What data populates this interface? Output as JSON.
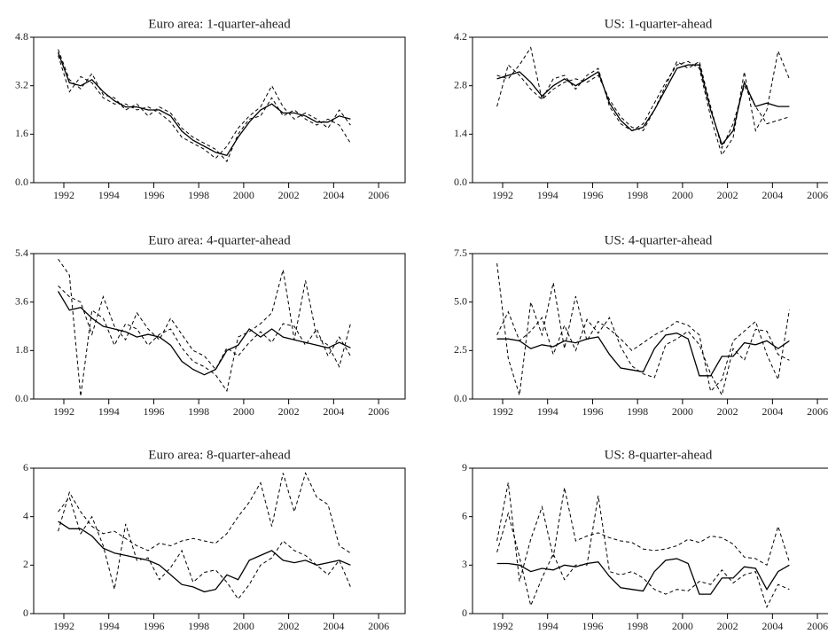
{
  "chart_data": [
    {
      "type": "line",
      "title": "Euro area: 1-quarter-ahead",
      "x": [
        1991.75,
        1992.25,
        1992.75,
        1993.25,
        1993.75,
        1994.25,
        1994.75,
        1995.25,
        1995.75,
        1996.25,
        1996.75,
        1997.25,
        1997.75,
        1998.25,
        1998.75,
        1999.25,
        1999.75,
        2000.25,
        2000.75,
        2001.25,
        2001.75,
        2002.25,
        2002.75,
        2003.25,
        2003.75,
        2004.25,
        2004.75
      ],
      "xlim": [
        1990.66,
        2007.18
      ],
      "xticks": [
        1992,
        1994,
        1996,
        1998,
        2000,
        2002,
        2004,
        2006
      ],
      "ylim": [
        0,
        4.8
      ],
      "yticks": [
        {
          "value": 0,
          "label": "0.0"
        },
        1.6,
        3.2,
        4.8
      ],
      "series": [
        {
          "color": "#000000",
          "dashed": false,
          "values": [
            4.3,
            3.3,
            3.2,
            3.4,
            3.0,
            2.7,
            2.5,
            2.5,
            2.4,
            2.4,
            2.2,
            1.7,
            1.4,
            1.2,
            1.0,
            0.9,
            1.5,
            2.0,
            2.4,
            2.6,
            2.3,
            2.3,
            2.2,
            2.0,
            2.0,
            2.2,
            2.1
          ]
        },
        {
          "color": "#000000",
          "dashed": true,
          "values": [
            4.2,
            3.0,
            3.5,
            3.3,
            2.8,
            2.6,
            2.6,
            2.4,
            2.5,
            2.3,
            2.0,
            1.5,
            1.3,
            1.1,
            0.8,
            1.2,
            1.8,
            2.2,
            2.5,
            3.2,
            2.5,
            2.1,
            2.3,
            2.1,
            1.8,
            2.4,
            1.9
          ]
        },
        {
          "color": "#000000",
          "dashed": true,
          "values": [
            4.4,
            3.4,
            3.1,
            3.6,
            2.9,
            2.8,
            2.4,
            2.6,
            2.2,
            2.5,
            2.3,
            1.8,
            1.5,
            1.3,
            1.1,
            0.7,
            1.6,
            2.1,
            2.2,
            2.8,
            2.2,
            2.4,
            2.1,
            1.9,
            2.1,
            1.9,
            1.3
          ]
        }
      ]
    },
    {
      "type": "line",
      "title": "US: 1-quarter-ahead",
      "x": [
        1991.75,
        1992.25,
        1992.75,
        1993.25,
        1993.75,
        1994.25,
        1994.75,
        1995.25,
        1995.75,
        1996.25,
        1996.75,
        1997.25,
        1997.75,
        1998.25,
        1998.75,
        1999.25,
        1999.75,
        2000.25,
        2000.75,
        2001.25,
        2001.75,
        2002.25,
        2002.75,
        2003.25,
        2003.75,
        2004.25,
        2004.75
      ],
      "xlim": [
        1990.66,
        2007.18
      ],
      "xticks": [
        1992,
        1994,
        1996,
        1998,
        2000,
        2002,
        2004,
        2006
      ],
      "ylim": [
        0,
        4.2
      ],
      "yticks": [
        {
          "value": 0,
          "label": "0.0"
        },
        1.4,
        2.8,
        4.2
      ],
      "series": [
        {
          "color": "#000000",
          "dashed": false,
          "values": [
            3.0,
            3.1,
            3.2,
            2.9,
            2.5,
            2.8,
            3.0,
            2.8,
            3.0,
            3.2,
            2.3,
            1.8,
            1.5,
            1.6,
            2.1,
            2.7,
            3.3,
            3.4,
            3.4,
            2.1,
            1.1,
            1.5,
            2.9,
            2.2,
            2.3,
            2.2,
            2.2
          ]
        },
        {
          "color": "#000000",
          "dashed": true,
          "values": [
            2.2,
            3.4,
            3.1,
            2.7,
            2.4,
            3.0,
            3.1,
            2.7,
            3.1,
            3.3,
            2.2,
            1.7,
            1.5,
            1.7,
            2.3,
            2.9,
            3.4,
            3.5,
            3.3,
            1.9,
            0.8,
            1.3,
            3.2,
            1.5,
            2.1,
            3.8,
            3.0
          ]
        },
        {
          "color": "#000000",
          "dashed": true,
          "values": [
            3.1,
            3.0,
            3.4,
            3.9,
            2.4,
            2.7,
            2.9,
            3.0,
            2.9,
            3.1,
            2.4,
            1.9,
            1.6,
            1.5,
            2.1,
            2.8,
            3.5,
            3.3,
            3.5,
            2.2,
            1.0,
            1.7,
            2.8,
            2.2,
            1.7,
            1.8,
            1.9
          ]
        }
      ]
    },
    {
      "type": "line",
      "title": "Euro area: 4-quarter-ahead",
      "x": [
        1991.75,
        1992.25,
        1992.75,
        1993.25,
        1993.75,
        1994.25,
        1994.75,
        1995.25,
        1995.75,
        1996.25,
        1996.75,
        1997.25,
        1997.75,
        1998.25,
        1998.75,
        1999.25,
        1999.75,
        2000.25,
        2000.75,
        2001.25,
        2001.75,
        2002.25,
        2002.75,
        2003.25,
        2003.75,
        2004.25,
        2004.75
      ],
      "xlim": [
        1990.66,
        2007.18
      ],
      "xticks": [
        1992,
        1994,
        1996,
        1998,
        2000,
        2002,
        2004,
        2006
      ],
      "ylim": [
        0,
        5.4
      ],
      "yticks": [
        {
          "value": 0,
          "label": "0.0"
        },
        1.8,
        3.6,
        5.4
      ],
      "series": [
        {
          "color": "#000000",
          "dashed": false,
          "values": [
            4.0,
            3.3,
            3.4,
            3.0,
            2.7,
            2.6,
            2.5,
            2.3,
            2.4,
            2.3,
            2.0,
            1.4,
            1.1,
            0.9,
            1.1,
            1.8,
            2.0,
            2.6,
            2.3,
            2.6,
            2.3,
            2.2,
            2.1,
            2.0,
            1.9,
            2.1,
            1.9
          ]
        },
        {
          "color": "#000000",
          "dashed": true,
          "values": [
            5.2,
            4.6,
            0.1,
            3.3,
            3.0,
            2.0,
            2.8,
            2.6,
            2.0,
            2.4,
            2.6,
            1.9,
            1.4,
            1.2,
            0.9,
            0.3,
            2.3,
            2.5,
            2.8,
            3.2,
            4.8,
            2.2,
            4.4,
            2.3,
            2.0,
            1.2,
            2.8
          ]
        },
        {
          "color": "#000000",
          "dashed": true,
          "values": [
            4.2,
            3.8,
            3.6,
            2.4,
            3.8,
            2.7,
            2.2,
            3.2,
            2.6,
            2.2,
            3.0,
            2.4,
            1.8,
            1.6,
            1.1,
            1.9,
            1.6,
            2.1,
            2.5,
            2.1,
            2.8,
            2.7,
            2.0,
            2.6,
            1.6,
            2.3,
            1.6
          ]
        }
      ]
    },
    {
      "type": "line",
      "title": "US: 4-quarter-ahead",
      "x": [
        1991.75,
        1992.25,
        1992.75,
        1993.25,
        1993.75,
        1994.25,
        1994.75,
        1995.25,
        1995.75,
        1996.25,
        1996.75,
        1997.25,
        1997.75,
        1998.25,
        1998.75,
        1999.25,
        1999.75,
        2000.25,
        2000.75,
        2001.25,
        2001.75,
        2002.25,
        2002.75,
        2003.25,
        2003.75,
        2004.25,
        2004.75
      ],
      "xlim": [
        1990.66,
        2007.18
      ],
      "xticks": [
        1992,
        1994,
        1996,
        1998,
        2000,
        2002,
        2004,
        2006
      ],
      "ylim": [
        0,
        7.5
      ],
      "yticks": [
        {
          "value": 0,
          "label": "0.0"
        },
        2.5,
        {
          "value": 5,
          "label": "5.0"
        },
        7.5
      ],
      "series": [
        {
          "color": "#000000",
          "dashed": false,
          "values": [
            3.1,
            3.1,
            3.0,
            2.6,
            2.8,
            2.7,
            3.0,
            2.9,
            3.1,
            3.2,
            2.3,
            1.6,
            1.5,
            1.4,
            2.6,
            3.3,
            3.4,
            3.1,
            1.2,
            1.2,
            2.2,
            2.2,
            2.9,
            2.8,
            3.0,
            2.6,
            3.0
          ]
        },
        {
          "color": "#000000",
          "dashed": true,
          "values": [
            7.0,
            2.1,
            0.2,
            5.0,
            3.3,
            6.0,
            2.6,
            5.3,
            3.0,
            4.0,
            3.6,
            3.1,
            2.5,
            2.9,
            3.3,
            3.6,
            4.0,
            3.8,
            3.3,
            0.4,
            1.0,
            3.0,
            3.5,
            4.0,
            2.3,
            1.0,
            4.6
          ]
        },
        {
          "color": "#000000",
          "dashed": true,
          "values": [
            3.3,
            4.5,
            3.0,
            3.5,
            4.2,
            2.3,
            3.8,
            2.5,
            4.1,
            3.4,
            4.2,
            2.7,
            1.7,
            1.3,
            1.1,
            2.8,
            3.1,
            3.5,
            2.8,
            1.3,
            0.2,
            2.6,
            2.0,
            3.6,
            3.5,
            2.3,
            2.0
          ]
        }
      ]
    },
    {
      "type": "line",
      "title": "Euro area: 8-quarter-ahead",
      "x": [
        1991.75,
        1992.25,
        1992.75,
        1993.25,
        1993.75,
        1994.25,
        1994.75,
        1995.25,
        1995.75,
        1996.25,
        1996.75,
        1997.25,
        1997.75,
        1998.25,
        1998.75,
        1999.25,
        1999.75,
        2000.25,
        2000.75,
        2001.25,
        2001.75,
        2002.25,
        2002.75,
        2003.25,
        2003.75,
        2004.25,
        2004.75
      ],
      "xlim": [
        1990.66,
        2007.18
      ],
      "xticks": [
        1992,
        1994,
        1996,
        1998,
        2000,
        2002,
        2004,
        2006
      ],
      "ylim": [
        0,
        6
      ],
      "yticks": [
        0,
        2,
        4,
        6
      ],
      "series": [
        {
          "color": "#000000",
          "dashed": false,
          "values": [
            3.8,
            3.5,
            3.5,
            3.2,
            2.7,
            2.5,
            2.4,
            2.3,
            2.2,
            2.0,
            1.6,
            1.2,
            1.1,
            0.9,
            1.0,
            1.6,
            1.4,
            2.2,
            2.4,
            2.6,
            2.2,
            2.1,
            2.2,
            2.0,
            2.1,
            2.2,
            2.0
          ]
        },
        {
          "color": "#000000",
          "dashed": true,
          "values": [
            3.4,
            5.0,
            4.2,
            3.6,
            3.3,
            3.4,
            3.1,
            2.8,
            2.6,
            2.9,
            2.8,
            3.0,
            3.1,
            3.0,
            2.9,
            3.3,
            4.0,
            4.6,
            5.4,
            3.6,
            5.8,
            4.2,
            5.8,
            4.8,
            4.5,
            2.8,
            2.5
          ]
        },
        {
          "color": "#000000",
          "dashed": true,
          "values": [
            4.2,
            4.8,
            3.3,
            4.0,
            2.8,
            1.0,
            3.7,
            2.2,
            2.3,
            1.4,
            1.9,
            2.6,
            1.3,
            1.7,
            1.8,
            1.3,
            0.6,
            1.2,
            2.0,
            2.3,
            3.0,
            2.6,
            2.4,
            2.0,
            1.6,
            2.2,
            1.1
          ]
        }
      ]
    },
    {
      "type": "line",
      "title": "US: 8-quarter-ahead",
      "x": [
        1991.75,
        1992.25,
        1992.75,
        1993.25,
        1993.75,
        1994.25,
        1994.75,
        1995.25,
        1995.75,
        1996.25,
        1996.75,
        1997.25,
        1997.75,
        1998.25,
        1998.75,
        1999.25,
        1999.75,
        2000.25,
        2000.75,
        2001.25,
        2001.75,
        2002.25,
        2002.75,
        2003.25,
        2003.75,
        2004.25,
        2004.75
      ],
      "xlim": [
        1990.66,
        2007.18
      ],
      "xticks": [
        1992,
        1994,
        1996,
        1998,
        2000,
        2002,
        2004,
        2006
      ],
      "ylim": [
        0,
        9
      ],
      "yticks": [
        0,
        3,
        6,
        9
      ],
      "series": [
        {
          "color": "#000000",
          "dashed": false,
          "values": [
            3.1,
            3.1,
            3.0,
            2.6,
            2.8,
            2.7,
            3.0,
            2.9,
            3.1,
            3.2,
            2.3,
            1.6,
            1.5,
            1.4,
            2.6,
            3.3,
            3.4,
            3.1,
            1.2,
            1.2,
            2.2,
            2.2,
            2.9,
            2.8,
            1.5,
            2.6,
            3.0
          ]
        },
        {
          "color": "#000000",
          "dashed": true,
          "values": [
            4.5,
            8.1,
            2.0,
            4.6,
            6.6,
            3.5,
            7.8,
            4.5,
            4.8,
            5.0,
            4.7,
            4.5,
            4.4,
            4.0,
            3.9,
            4.0,
            4.2,
            4.6,
            4.4,
            4.8,
            4.7,
            4.3,
            3.5,
            3.4,
            3.0,
            5.4,
            3.2
          ]
        },
        {
          "color": "#000000",
          "dashed": true,
          "values": [
            3.8,
            6.2,
            3.5,
            0.5,
            2.2,
            3.7,
            2.1,
            3.0,
            3.0,
            7.3,
            2.6,
            2.4,
            2.6,
            2.2,
            1.5,
            1.2,
            1.5,
            1.4,
            2.0,
            1.8,
            2.7,
            1.9,
            2.4,
            2.6,
            0.4,
            1.8,
            1.5
          ]
        }
      ]
    }
  ]
}
